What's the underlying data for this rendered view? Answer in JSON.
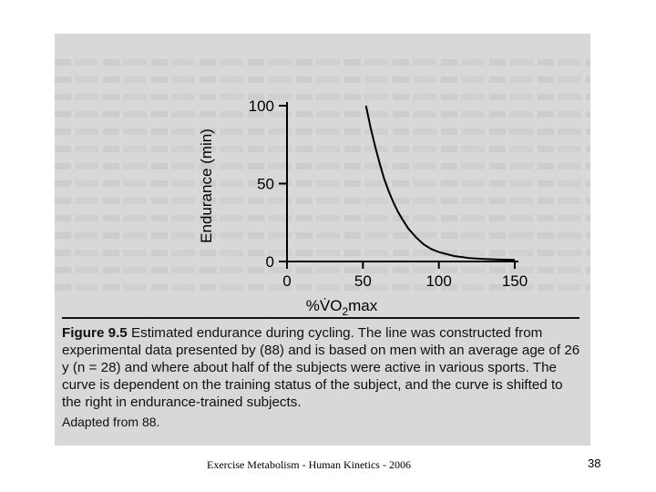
{
  "chart_data": {
    "type": "line",
    "xlabel": "%V̇O2max",
    "ylabel": "Endurance (min)",
    "xlim": [
      0,
      150
    ],
    "ylim": [
      0,
      100
    ],
    "xticks": [
      0,
      50,
      100,
      150
    ],
    "yticks": [
      0,
      50,
      100
    ],
    "grid": false,
    "legend": "none",
    "series": [
      {
        "x": [
          52,
          55,
          58,
          61,
          64,
          67,
          70,
          73,
          76,
          80,
          85,
          90,
          95,
          100,
          110,
          120,
          130,
          140,
          150
        ],
        "y": [
          100,
          86,
          74,
          63,
          53,
          45,
          38,
          32,
          27,
          21,
          15.5,
          11,
          8,
          6,
          3.5,
          2.2,
          1.6,
          1.2,
          1
        ]
      }
    ]
  },
  "caption": {
    "figure_label": "Figure 9.5",
    "text": "Estimated endurance during cycling. The line was constructed from experimental data presented by (88) and is based on men with an average age of 26 y (n = 28) and where about half of the subjects were active in various sports. The curve is dependent on the training status of the subject, and the curve is shifted to the right in endurance-trained subjects.",
    "adapted": "Adapted from 88."
  },
  "footer": "Exercise Metabolism - Human Kinetics - 2006",
  "page_number": "38"
}
